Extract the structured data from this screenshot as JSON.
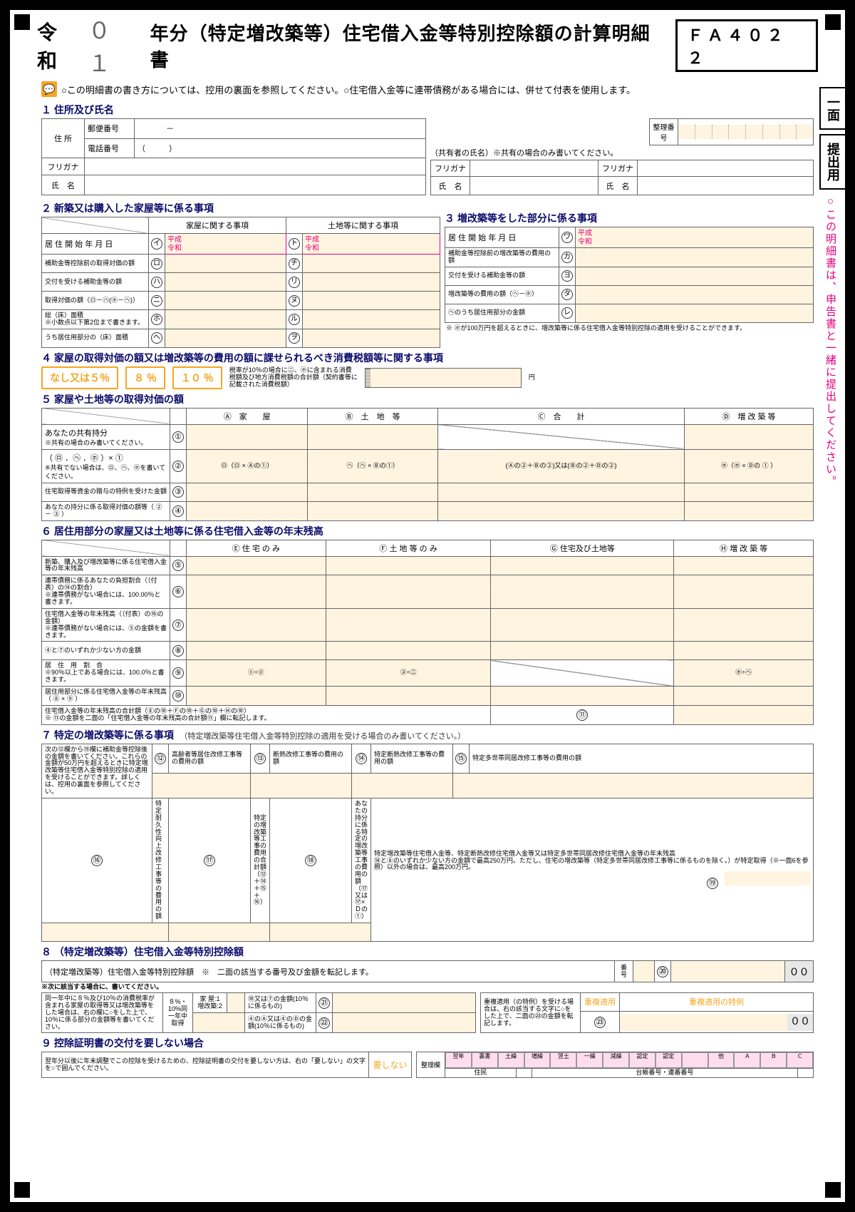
{
  "header": {
    "era": "令和",
    "year": "０１",
    "title_suffix": "年分（特定増改築等）住宅借入金等特別控除額の計算明細書",
    "form_code": "ＦＡ４０２２"
  },
  "instruction": "○この明細書の書き方については、控用の裏面を参照してください。○住宅借入金等に連帯債務がある場合には、併せて付表を使用します。",
  "side_tabs": {
    "page": "一面",
    "submit": "提出用"
  },
  "pink_note": "○この明細書は、申告書と一緒に提出してください。",
  "sec1": {
    "title": "１ 住所及び氏名",
    "addr_label": "住 所",
    "postal": "郵便番号",
    "dash": "－",
    "tel": "電話番号",
    "tel_paren": "（　　　）",
    "seiri": "整理番号",
    "coowner_note": "（共有者の氏名）※共有の場合のみ書いてください。",
    "furigana": "フリガナ",
    "name": "氏　名"
  },
  "sec2": {
    "title": "２ 新築又は購入した家屋等に係る事項",
    "h_house": "家屋に関する事項",
    "h_land": "土地等に関する事項",
    "r1": "居 住 開 始 年 月 日",
    "heisei": "平成",
    "reiwa": "令和",
    "r2": "補助金等控除前の取得対価の額",
    "r3": "交付を受ける補助金等の額",
    "r4": "取得対価の額（㋺－㋩(㋭－㋬)）",
    "r5": "総（床）面積",
    "r5_note": "※小数点以下第2位まで書きます。",
    "r6": "うち居住用部分の（床）面積"
  },
  "sec3": {
    "title": "３ 増改築等をした部分に係る事項",
    "r1": "居 住 開 始 年 月 日",
    "r2": "補助金等控除前の増改築等の費用の額",
    "r3": "交付を受ける補助金等の額",
    "r4": "増改築等の費用の額（㋬－㋭）",
    "r5": "㋬のうち居住用部分の金額",
    "note": "※ ㋭が100万円を超えるときに、増改築等に係る住宅借入金等特別控除の適用を受けることができます。"
  },
  "sec4": {
    "title": "４ 家屋の取得対価の額又は増改築等の費用の額に課せられるべき消費税額等に関する事項",
    "opt1": "なし又は５％",
    "opt2": "８ ％",
    "opt3": "１０ ％",
    "note": "税率が10％の場合に㋥、㋭に含まれる消費税額及び地方消費税額の合計額（契約書等に記載された消費税額）"
  },
  "sec5": {
    "title": "５ 家屋や土地等の取得対価の額",
    "colA": "Ⓐ　家　　屋",
    "colB": "Ⓑ　土　地　等",
    "colC": "Ⓒ　合　　計",
    "colD": "Ⓓ　増 改 築 等",
    "r1": "あなたの共有持分",
    "r1_note": "※共有の場合のみ書いてください。",
    "r2": "（ ㋺ ．㋬ ．㋭ ）× ①",
    "r2_note": "※共有でない場合は、㋺、㋬、㋭を書いてください。",
    "r2_a": "㋺（㋺ × Ⓐの①）",
    "r2_b": "㋬（㋬ × Ⓑの①）",
    "r2_c": "(Ⓐの②＋Ⓑの②)又は(Ⓑの②＋Ⓓの②)",
    "r2_d": "㋭（㋭ × Ⓓの ① ）",
    "r3": "住宅取得等資金の贈与の特例を受けた金額",
    "r4": "あなたの持分に係る取得対価の額等（ ② － ③ ）"
  },
  "sec6": {
    "title": "６ 居住用部分の家屋又は土地等に係る住宅借入金等の年末残高",
    "colE": "Ⓔ 住 宅 の み",
    "colF": "Ⓕ 土 地 等 の み",
    "colG": "Ⓖ 住宅及び土地等",
    "colH": "Ⓗ 増 改 築 等",
    "r5": "新築、購入及び増改築等に係る住宅借入金等の年末残高",
    "r6": "連帯債務に係るあなたの負担割合（（付表）の⑭の割合）",
    "r6_note": "※連帯債務がない場合には、100.00％と書きます。",
    "r7": "住宅借入金等の年末残高（（付表）の⑯の金額）",
    "r7_note": "※連帯債務がない場合には、⑤の金額を書きます。",
    "r8": "④と⑦のいずれか少ない方の金額",
    "r9": "居　住　用　割　合",
    "r9_note": "※90％以上である場合には、100.0％と書きます。",
    "r9_a": "㋣÷㋢",
    "r9_b": "㋦÷㋥",
    "r9_c": "㋭÷㋬",
    "r10": "居住用部分に係る住宅借入金等の年末残高（ ⑧ × ⑨ ）",
    "sum": "住宅借入金等の年末残高の合計額（Ⓔの⑩＋Ⓕの⑩＋Ⓖの⑩＋Ⓗの⑩）",
    "sum_note": "※ ⑪の金額を二面の「住宅借入金等の年末残高の合計額⑪」欄に転記します。"
  },
  "sec7": {
    "title": "７ 特定の増改築等に係る事項",
    "title_note": "（特定増改築等住宅借入金等特別控除の適用を受ける場合のみ書いてください。）",
    "left_note": "次の⑫欄から⑲欄に補助金等控除後の金額を書いてください。これらの金額が50万円を超えるときに特定増改築等住宅借入金等特別控除の適用を受けることができます。詳しくは、控用の裏面を参照してください。",
    "b12": "高齢者等居住改修工事等の費用の額",
    "b13": "断熱改修工事等の費用の額",
    "b14": "特定断熱改修工事等の費用の額",
    "b15": "特定多世帯同居改修工事等の費用の額",
    "b16": "特定耐久性向上改修工事等の費用の額",
    "b17": "特定の増改築等工事の費用の合計額（⑫＋⑭＋⑮＋⑯）",
    "b18": "あなたの持分に係る特定の増改築等工事の費用の額（⑰又は⑰×Ｄの①）",
    "b19_title": "特定増改築等住宅借入金等、特定断熱改修住宅借入金等又は特定多世帯同居改修住宅借入金等の年末残高",
    "b19_note": "⑱と⑧のいずれか少ない方の金額で最高250万円。ただし、住宅の増改築等（特定多世帯同居改修工事等に係るものを除く。）が特定取得（※一面6を参照）以外の場合は、最高200万円。"
  },
  "sec8": {
    "title": "８ （特定増改築等）住宅借入金等特別控除額",
    "r_main": "（特定増改築等）住宅借入金等特別控除額　※　二面の該当する番号及び金額を転記します。",
    "bangou": "番号",
    "note_star": "※次に該当する場合に、書いてください。",
    "left_box": "同一年中に８％及び10％の消費税率が含まれる家屋の取得等又は増改築等をした場合は、右の欄に○をした上で、10％に係る部分の金額等を書いてください。",
    "col1": "８%・10%同一年中取得",
    "col2a": "家 屋:1 増改築:2",
    "col2b": "⑩又は⑦の金額(10％に係るもの)",
    "col2c": "④のⒶ又は④のⒹの金額(10％に係るもの)",
    "right_box": "重複適用（の特例）を受ける場合は、右の該当する文字に○をした上で、二面の㉓の金額を転記します。",
    "dup1": "重複適用",
    "dup2": "重複適用の特例",
    "fixed_zero": "００"
  },
  "sec9": {
    "title": "９ 控除証明書の交付を要しない場合",
    "text": "翌年分以後に年末調整でこの控除を受けるための、控除証明書の交付を要しない方は、右の「要しない」の文字を○で囲んでください。",
    "btn": "要しない",
    "seiri": "整理欄",
    "jumin": "住民",
    "daicho": "台帳番号・連番番号",
    "cols": [
      "翌年",
      "裏書",
      "土繰",
      "増繰",
      "翌土",
      "一繰",
      "減繰",
      "認定",
      "認定",
      "",
      "他",
      "Ａ",
      "Ｂ",
      "Ｃ"
    ]
  }
}
